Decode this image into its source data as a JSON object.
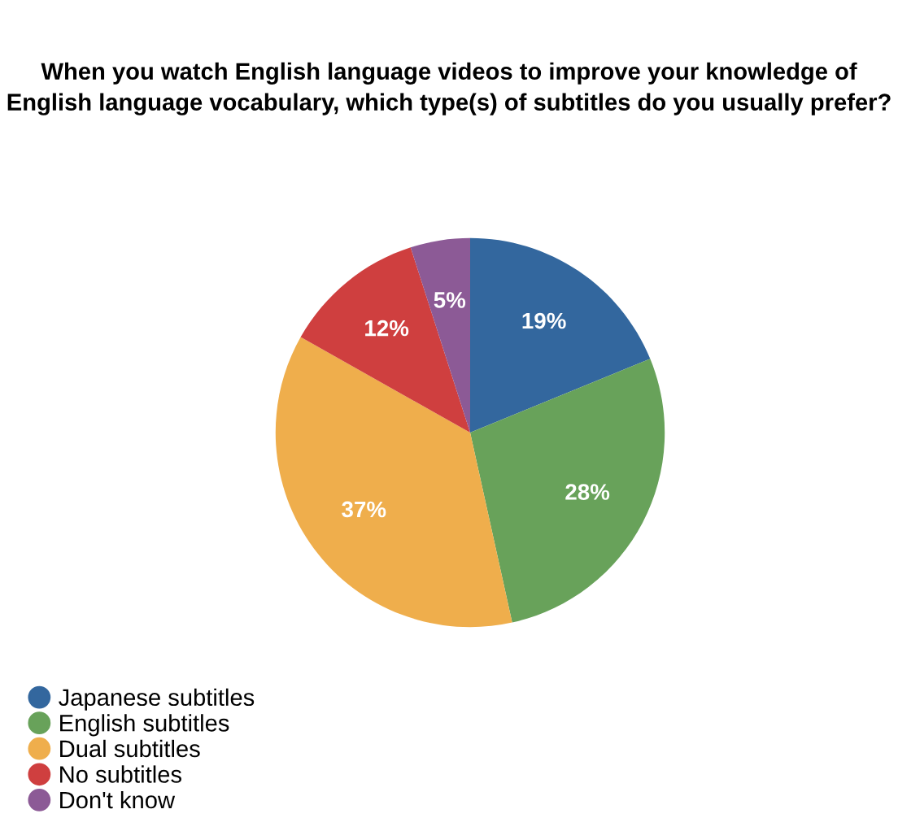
{
  "chart_data": {
    "type": "pie",
    "title": "When you watch English language videos to improve your knowledge of English language vocabulary, which type(s) of subtitles do you usually prefer?",
    "categories": [
      "Japanese subtitles",
      "English subtitles",
      "Dual subtitles",
      "No subtitles",
      "Don't know"
    ],
    "values": [
      19,
      28,
      37,
      12,
      5
    ],
    "value_labels": [
      "19%",
      "28%",
      "37%",
      "12%",
      "5%"
    ],
    "colors": [
      "#33679e",
      "#68a25a",
      "#efae4c",
      "#cf3f3f",
      "#8c5a96"
    ],
    "legend": "bottom left"
  }
}
